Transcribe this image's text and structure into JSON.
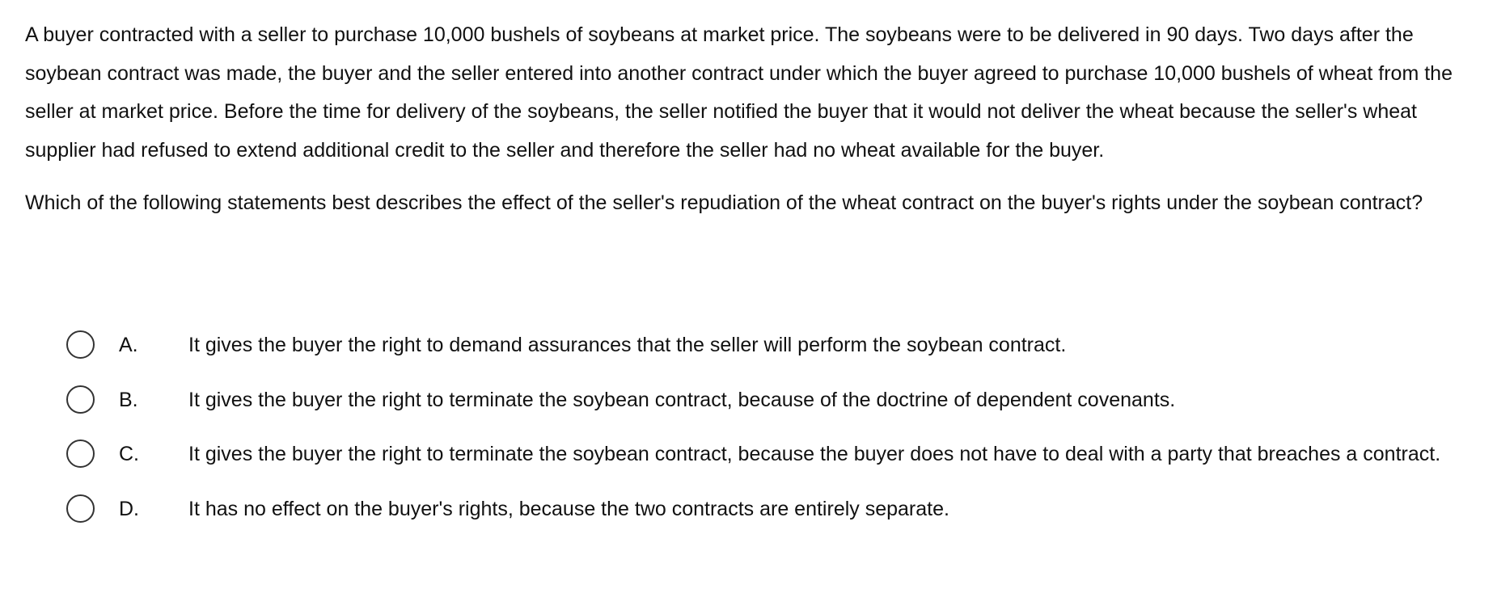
{
  "question": {
    "stem": "A buyer contracted with a seller to purchase 10,000 bushels of soybeans at market price.  The soybeans were to be delivered in 90 days.  Two days after the soybean contract was made, the buyer and the seller entered into another contract under which the buyer agreed to purchase 10,000 bushels of wheat from the seller at market price.  Before the time for delivery of the soybeans, the seller notified the buyer that it would not deliver the wheat because the seller's wheat supplier had refused to extend additional credit to the seller and therefore the seller had no wheat available for the buyer.",
    "prompt": "Which of the following statements best describes the effect of the seller's repudiation of the wheat contract on the buyer's rights under the soybean contract?"
  },
  "options": [
    {
      "letter": "A.",
      "text": "It gives the buyer the right to demand assurances that the seller will perform the soybean contract."
    },
    {
      "letter": "B.",
      "text": "It gives the buyer the right to terminate the soybean contract, because of the doctrine of dependent covenants."
    },
    {
      "letter": "C.",
      "text": "It gives the buyer the right to terminate the soybean contract, because the buyer does not have to deal with a party that breaches a contract."
    },
    {
      "letter": "D.",
      "text": "It has no effect on the buyer's rights, because the two contracts are entirely separate."
    }
  ],
  "selected_option": null
}
